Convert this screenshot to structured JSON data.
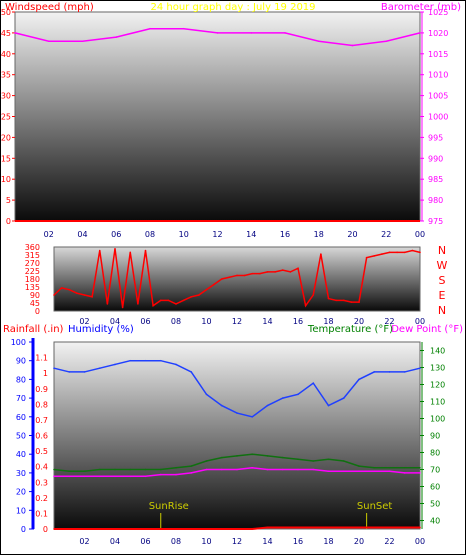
{
  "colors": {
    "wind": "#ff0000",
    "baro": "#ff00ff",
    "title": "#ffff00",
    "rain": "#ff0000",
    "humidity": "#0000ff",
    "humidity_line": "#2040ff",
    "temperature": "#008000",
    "temperature_line": "#107010",
    "dewpoint": "#ff00ff",
    "sun": "#cccc00"
  },
  "x_ticks": [
    "02",
    "04",
    "06",
    "08",
    "10",
    "12",
    "14",
    "16",
    "18",
    "20",
    "22",
    "00"
  ],
  "chart_data": [
    {
      "type": "line",
      "title": "24 hour graph day : July 19 2019",
      "x": [
        0,
        2,
        4,
        6,
        8,
        10,
        12,
        14,
        16,
        18,
        20,
        22,
        24
      ],
      "series": [
        {
          "name": "Windspeed (mph)",
          "axis": "left",
          "values": [
            0,
            0,
            0,
            0,
            0,
            0,
            0,
            0,
            0,
            0,
            0,
            0,
            0
          ]
        },
        {
          "name": "Barometer (mb)",
          "axis": "right",
          "values": [
            1020,
            1018,
            1018,
            1019,
            1021,
            1021,
            1020,
            1020,
            1020,
            1018,
            1017,
            1018,
            1020
          ]
        }
      ],
      "left_axis": {
        "label": "Windspeed (mph)",
        "range": [
          0,
          50
        ],
        "ticks": [
          0,
          5,
          10,
          15,
          20,
          25,
          30,
          35,
          40,
          45,
          50
        ]
      },
      "right_axis": {
        "label": "Barometer (mb)",
        "range": [
          975,
          1025
        ],
        "ticks": [
          975,
          980,
          985,
          990,
          995,
          1000,
          1005,
          1010,
          1015,
          1020,
          1025
        ]
      }
    },
    {
      "type": "line",
      "series_name": "Wind direction",
      "x": [
        0,
        0.5,
        1,
        1.5,
        2,
        2.5,
        3,
        3.5,
        4,
        4.5,
        5,
        5.5,
        6,
        6.5,
        7,
        7.5,
        8,
        8.5,
        9,
        9.5,
        10,
        10.5,
        11,
        11.5,
        12,
        12.5,
        13,
        13.5,
        14,
        14.5,
        15,
        15.5,
        16,
        16.5,
        17,
        17.5,
        18,
        18.5,
        19,
        19.5,
        20,
        20.5,
        21,
        21.5,
        22,
        22.5,
        23,
        23.5,
        24
      ],
      "values": [
        90,
        130,
        120,
        100,
        90,
        80,
        340,
        40,
        350,
        20,
        330,
        40,
        340,
        30,
        60,
        60,
        40,
        60,
        80,
        90,
        120,
        150,
        180,
        190,
        200,
        200,
        210,
        210,
        220,
        220,
        230,
        220,
        240,
        30,
        90,
        320,
        70,
        60,
        60,
        50,
        50,
        300,
        310,
        320,
        330,
        330,
        330,
        340,
        330
      ],
      "y_axis": {
        "range": [
          0,
          360
        ],
        "ticks": [
          0,
          45,
          90,
          135,
          180,
          225,
          270,
          315,
          360
        ]
      },
      "compass_labels": [
        "N",
        "W",
        "S",
        "E",
        "N"
      ]
    },
    {
      "type": "line",
      "x": [
        0,
        1,
        2,
        3,
        4,
        5,
        6,
        7,
        8,
        9,
        10,
        11,
        12,
        13,
        14,
        15,
        16,
        17,
        18,
        19,
        20,
        21,
        22,
        23,
        24
      ],
      "series": [
        {
          "name": "Rainfall (.in)",
          "axis": "rain",
          "values": [
            0,
            0,
            0,
            0,
            0,
            0,
            0,
            0,
            0,
            0,
            0,
            0,
            0,
            0,
            0.01,
            0.01,
            0.01,
            0.01,
            0.01,
            0.01,
            0.01,
            0.01,
            0.01,
            0.01,
            0.01
          ]
        },
        {
          "name": "Humidity (%)",
          "axis": "left",
          "values": [
            86,
            84,
            84,
            86,
            88,
            90,
            90,
            90,
            88,
            84,
            72,
            66,
            62,
            60,
            66,
            70,
            72,
            78,
            66,
            70,
            80,
            84,
            84,
            84,
            86
          ]
        },
        {
          "name": "Temperature (°F)",
          "axis": "right",
          "values": [
            70,
            69,
            69,
            70,
            70,
            70,
            70,
            70,
            71,
            72,
            75,
            77,
            78,
            79,
            78,
            77,
            76,
            75,
            76,
            75,
            72,
            71,
            71,
            71,
            71
          ]
        },
        {
          "name": "Dew Point (°F)",
          "axis": "right",
          "values": [
            66,
            66,
            66,
            66,
            66,
            66,
            66,
            67,
            67,
            68,
            70,
            70,
            70,
            71,
            70,
            70,
            70,
            70,
            69,
            69,
            69,
            69,
            69,
            68,
            68
          ]
        }
      ],
      "rain_axis": {
        "label": "Rainfall (.in)",
        "range": [
          0,
          1.2
        ],
        "ticks": [
          0,
          0.1,
          0.2,
          0.3,
          0.4,
          0.5,
          0.6,
          0.7,
          0.8,
          0.9,
          1,
          1.1
        ]
      },
      "left_axis": {
        "label": "Humidity (%)",
        "range": [
          0,
          100
        ],
        "ticks": [
          0,
          10,
          20,
          30,
          40,
          50,
          60,
          70,
          80,
          90,
          100
        ]
      },
      "right_axis": {
        "label_temp": "Temperature (°F)",
        "label_dew": "Dew Point (°F)",
        "range": [
          35,
          145
        ],
        "ticks": [
          40,
          50,
          60,
          70,
          80,
          90,
          100,
          110,
          120,
          130,
          140
        ]
      },
      "annotations": [
        {
          "label": "SunRise",
          "x": 7
        },
        {
          "label": "SunSet",
          "x": 20.5
        }
      ]
    }
  ]
}
